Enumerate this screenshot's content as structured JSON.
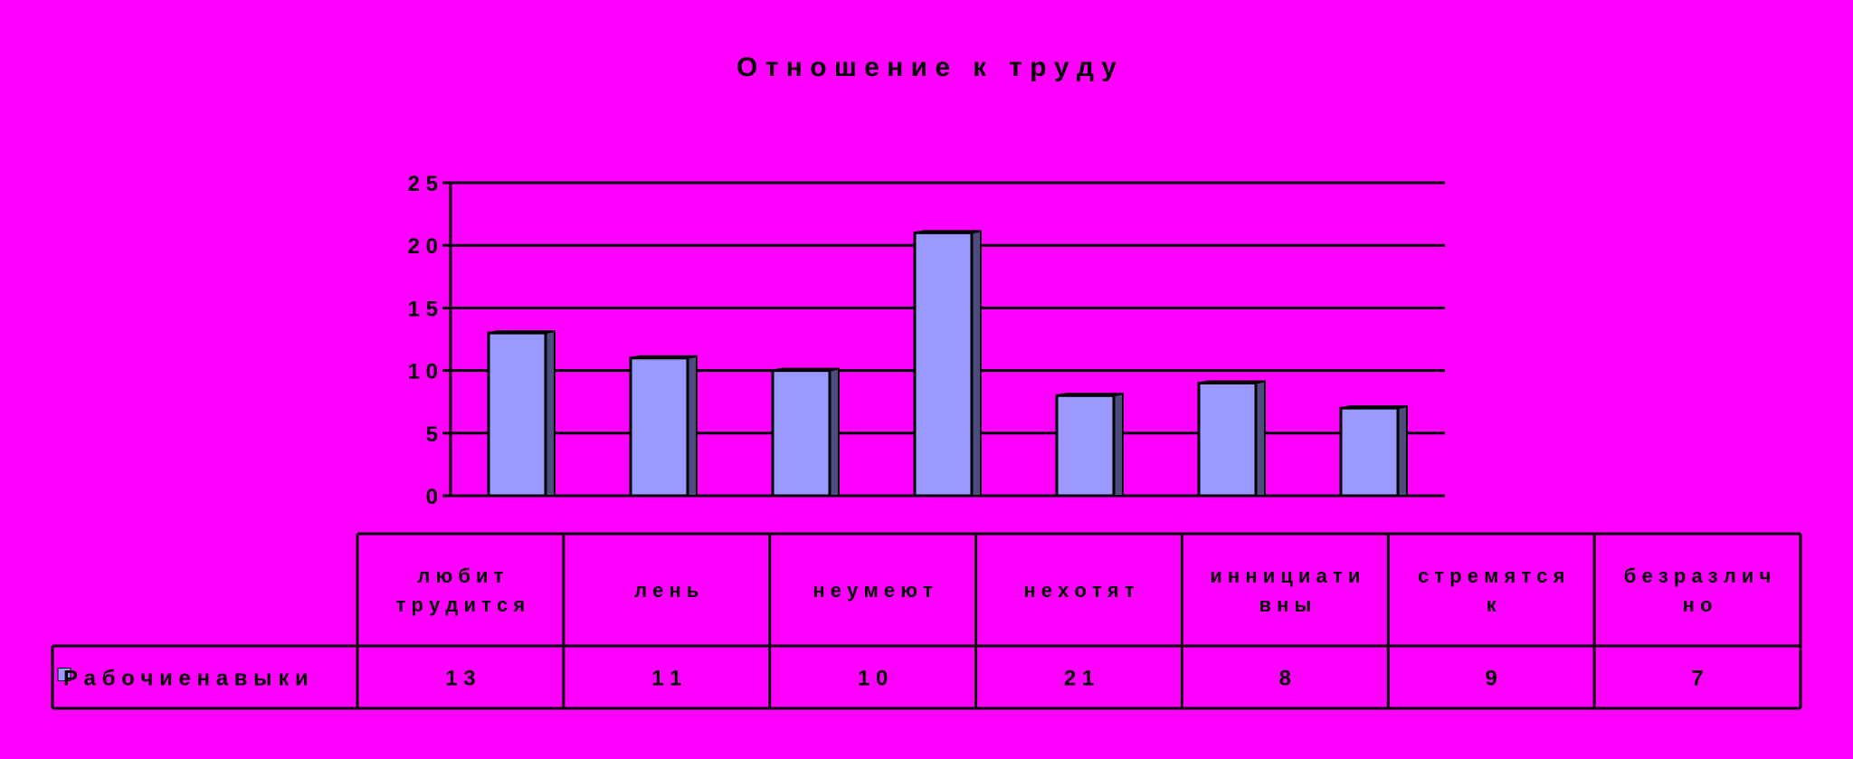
{
  "chart_data": {
    "type": "bar",
    "title": "О т н о ш е н и е   к   т р у д у",
    "categories": [
      [
        "л ю б и т",
        "т р у д и т с я"
      ],
      [
        "л е н ь"
      ],
      [
        "н е   у м е ю т"
      ],
      [
        "н е   х о т я т"
      ],
      [
        "и н н и ц и а т и",
        "в н ы"
      ],
      [
        "с т р е м я т с я",
        "к"
      ],
      [
        "б е з р а з л и ч",
        "н о"
      ]
    ],
    "series": [
      {
        "name": "Р а б о ч и е   н а в ы к и",
        "values": [
          13,
          11,
          10,
          21,
          8,
          9,
          7
        ]
      }
    ],
    "value_labels": [
      "1 3",
      "1 1",
      "1 0",
      "2 1",
      "8",
      "9",
      "7"
    ],
    "y_ticks": [
      "0",
      "5",
      "1 0",
      "1 5",
      "2 0",
      "2 5"
    ],
    "ylim": [
      0,
      25
    ],
    "grid": true,
    "legend": "data-table",
    "colors": {
      "background": "#ff00ff",
      "bar_front": "#9999ff",
      "bar_side": "#4c4c7f",
      "bar_top": "#b3b3ff",
      "lines": "#000000"
    }
  }
}
